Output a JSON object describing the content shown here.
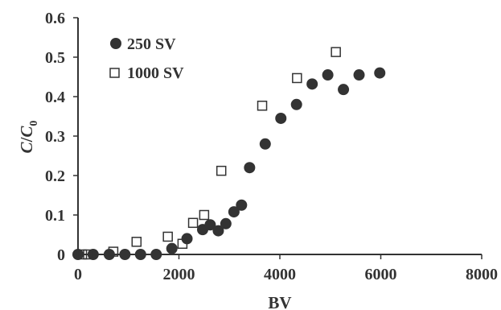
{
  "chart_data": {
    "type": "scatter",
    "title": "",
    "xlabel": "BV",
    "ylabel_main": "C",
    "ylabel_sep": "/",
    "ylabel_sub_base": "C",
    "ylabel_sub_index": "0",
    "xlim": [
      0,
      8000
    ],
    "ylim": [
      0,
      0.6
    ],
    "x_ticks": [
      0,
      2000,
      4000,
      6000,
      8000
    ],
    "x_tick_labels": [
      "0",
      "2000",
      "4000",
      "6000",
      "8000"
    ],
    "y_ticks": [
      0,
      0.1,
      0.2,
      0.3,
      0.4,
      0.5,
      0.6
    ],
    "y_tick_labels": [
      "0",
      "0.1",
      "0.2",
      "0.3",
      "0.4",
      "0.5",
      "0.6"
    ],
    "grid": false,
    "legend_position": "top-left",
    "series": [
      {
        "name": "250 SV",
        "marker": "filled-circle",
        "color": "#333333",
        "points": [
          {
            "x": 0,
            "y": 0
          },
          {
            "x": 300,
            "y": 0
          },
          {
            "x": 620,
            "y": 0
          },
          {
            "x": 930,
            "y": 0
          },
          {
            "x": 1240,
            "y": 0
          },
          {
            "x": 1550,
            "y": 0
          },
          {
            "x": 1860,
            "y": 0.015
          },
          {
            "x": 2160,
            "y": 0.04
          },
          {
            "x": 2470,
            "y": 0.063
          },
          {
            "x": 2620,
            "y": 0.075
          },
          {
            "x": 2780,
            "y": 0.06
          },
          {
            "x": 2930,
            "y": 0.078
          },
          {
            "x": 3090,
            "y": 0.108
          },
          {
            "x": 3240,
            "y": 0.125
          },
          {
            "x": 3400,
            "y": 0.22
          },
          {
            "x": 3710,
            "y": 0.28
          },
          {
            "x": 4020,
            "y": 0.345
          },
          {
            "x": 4330,
            "y": 0.38
          },
          {
            "x": 4640,
            "y": 0.432
          },
          {
            "x": 4950,
            "y": 0.455
          },
          {
            "x": 5260,
            "y": 0.418
          },
          {
            "x": 5570,
            "y": 0.455
          },
          {
            "x": 5980,
            "y": 0.46
          }
        ]
      },
      {
        "name": "1000 SV",
        "marker": "open-square",
        "color": "#333333",
        "points": [
          {
            "x": 80,
            "y": 0
          },
          {
            "x": 200,
            "y": 0
          },
          {
            "x": 700,
            "y": 0.007
          },
          {
            "x": 1160,
            "y": 0.032
          },
          {
            "x": 1780,
            "y": 0.045
          },
          {
            "x": 2070,
            "y": 0.027
          },
          {
            "x": 2280,
            "y": 0.08
          },
          {
            "x": 2500,
            "y": 0.1
          },
          {
            "x": 2840,
            "y": 0.212
          },
          {
            "x": 3650,
            "y": 0.377
          },
          {
            "x": 4340,
            "y": 0.447
          },
          {
            "x": 5110,
            "y": 0.513
          }
        ]
      }
    ]
  }
}
